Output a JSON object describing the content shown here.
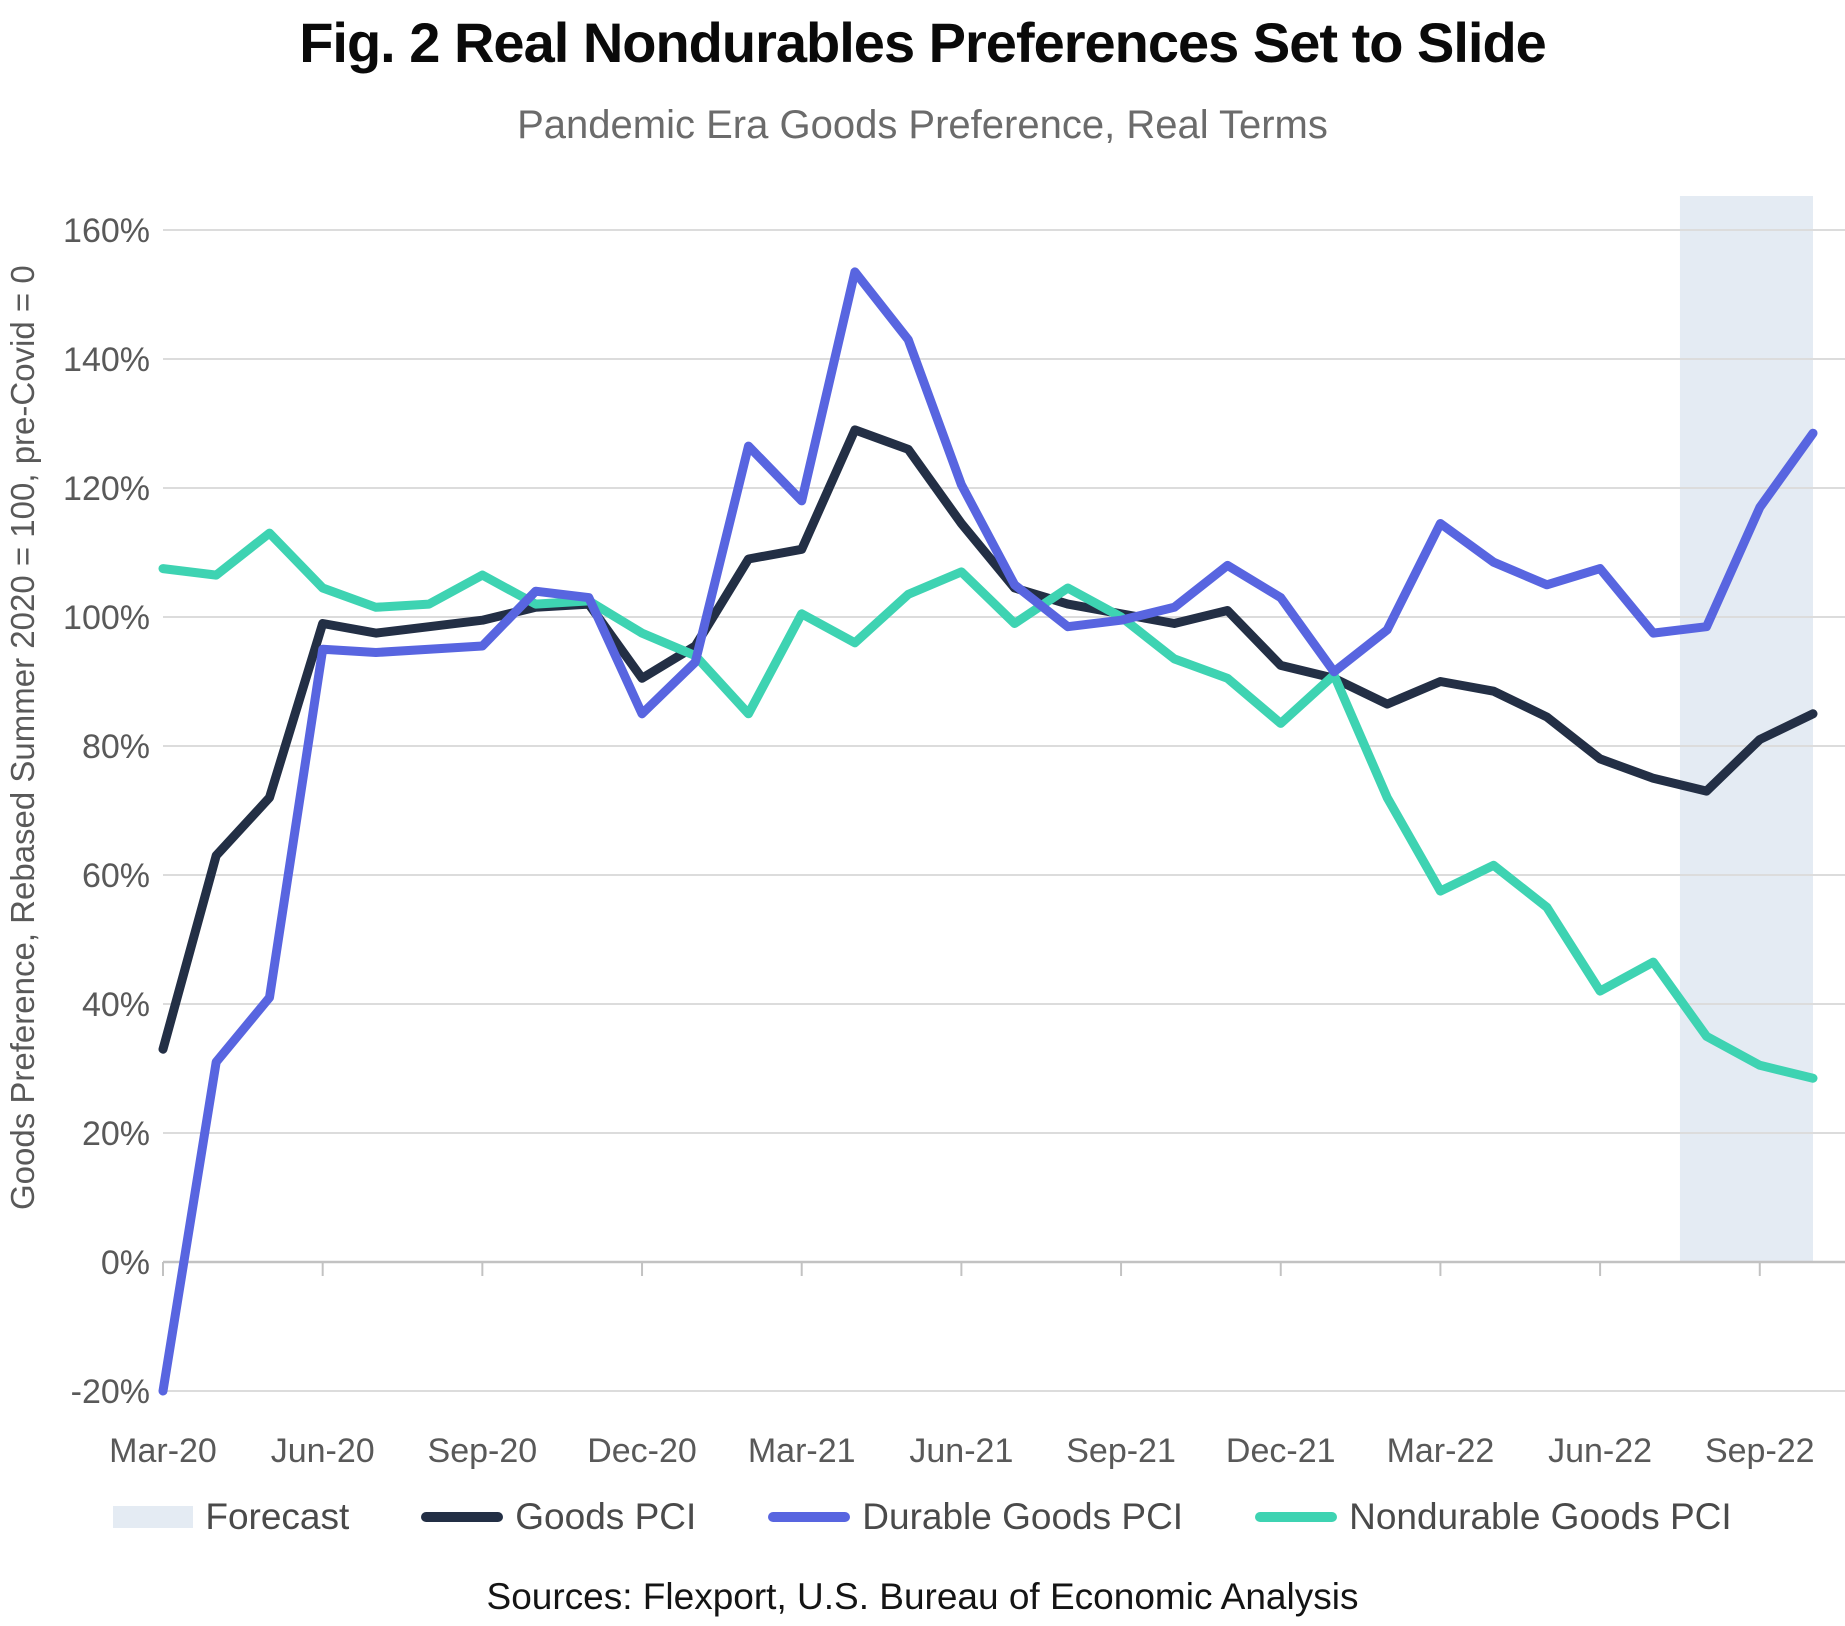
{
  "header": {
    "title": "Fig. 2 Real Nondurables Preferences Set to Slide",
    "subtitle": "Pandemic Era Goods Preference, Real Terms"
  },
  "y_axis_title": "Goods Preference, Rebased Summer 2020 = 100, pre-Covid = 0",
  "footer": {
    "sources": "Sources: Flexport, U.S. Bureau of Economic Analysis"
  },
  "legend": {
    "items": [
      {
        "label": "Forecast",
        "type": "area",
        "color": "#e4ebf3"
      },
      {
        "label": "Goods PCI",
        "type": "line",
        "color": "#232f45"
      },
      {
        "label": "Durable Goods PCI",
        "type": "line",
        "color": "#5865e0"
      },
      {
        "label": "Nondurable Goods PCI",
        "type": "line",
        "color": "#3ed3b2"
      }
    ]
  },
  "chart_data": {
    "type": "line",
    "x": [
      "Mar-20",
      "Apr-20",
      "May-20",
      "Jun-20",
      "Jul-20",
      "Aug-20",
      "Sep-20",
      "Oct-20",
      "Nov-20",
      "Dec-20",
      "Jan-21",
      "Feb-21",
      "Mar-21",
      "Apr-21",
      "May-21",
      "Jun-21",
      "Jul-21",
      "Aug-21",
      "Sep-21",
      "Oct-21",
      "Nov-21",
      "Dec-21",
      "Jan-22",
      "Feb-22",
      "Mar-22",
      "Apr-22",
      "May-22",
      "Jun-22",
      "Jul-22",
      "Aug-22",
      "Sep-22",
      "Oct-22"
    ],
    "x_tick_labels": [
      "Mar-20",
      "Jun-20",
      "Sep-20",
      "Dec-20",
      "Mar-21",
      "Jun-21",
      "Sep-21",
      "Dec-21",
      "Mar-22",
      "Jun-22",
      "Sep-22"
    ],
    "ylim": [
      -20,
      160
    ],
    "y_tick_step": 20,
    "y_tick_suffix": "%",
    "grid": true,
    "legend_position": "bottom",
    "series": [
      {
        "name": "Goods PCI",
        "color": "#232f45",
        "values": [
          33,
          63,
          72,
          99,
          97.5,
          98.5,
          99.5,
          101.5,
          102,
          90.5,
          95.5,
          109,
          110.5,
          129,
          126,
          114.5,
          104.5,
          102,
          100.5,
          99,
          101,
          92.5,
          90.5,
          86.5,
          90,
          88.5,
          84.5,
          78,
          75,
          73,
          81,
          85
        ]
      },
      {
        "name": "Durable Goods PCI",
        "color": "#5865e0",
        "values": [
          -20,
          31,
          41,
          95,
          94.5,
          95,
          95.5,
          104,
          103,
          85,
          93,
          126.5,
          118,
          153.5,
          143,
          120.5,
          105,
          98.5,
          99.5,
          101.5,
          108,
          103,
          91.5,
          98,
          114.5,
          108.5,
          105,
          107.5,
          97.5,
          98.5,
          117,
          128.5
        ]
      },
      {
        "name": "Nondurable Goods PCI",
        "color": "#3ed3b2",
        "values": [
          107.5,
          106.5,
          113,
          104.5,
          101.5,
          102,
          106.5,
          102,
          102.5,
          97.5,
          94,
          85,
          100.5,
          96,
          103.5,
          107,
          99,
          104.5,
          100,
          93.5,
          90.5,
          83.5,
          91,
          72,
          57.5,
          61.5,
          55,
          42,
          46.5,
          35,
          30.5,
          28.5
        ]
      }
    ],
    "forecast": {
      "label": "Forecast",
      "start": "Aug-22",
      "end": "Oct-22",
      "color": "#e4ebf3"
    }
  }
}
